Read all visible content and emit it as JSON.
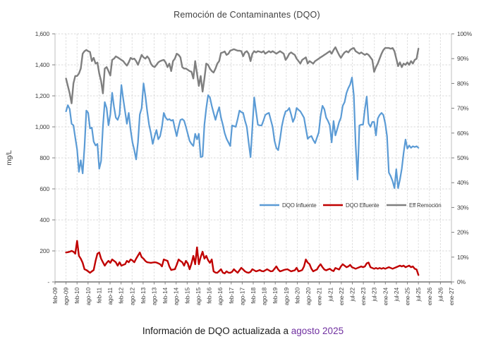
{
  "title": "Remoción de Contaminantes (DQO)",
  "caption": {
    "prefix": "Información de DQO actualizada a ",
    "highlight": "agosto 2025",
    "highlight_color": "#7030A0"
  },
  "y_left_axis": {
    "label": "mg/L",
    "ticks": [
      "1,600",
      "1,400",
      "1,200",
      "1,000",
      "800",
      "600",
      "400",
      "200",
      "-"
    ],
    "min": 0,
    "max": 1600,
    "step": 200
  },
  "y_right_axis": {
    "ticks": [
      "100%",
      "90%",
      "80%",
      "70%",
      "60%",
      "50%",
      "40%",
      "30%",
      "20%",
      "10%",
      "0%"
    ],
    "min": 0,
    "max": 100,
    "step": 10
  },
  "x_axis": {
    "ticks": [
      "feb-09",
      "ago-09",
      "feb-10",
      "ago-10",
      "feb-11",
      "ago-11",
      "feb-12",
      "ago-12",
      "feb-13",
      "ago-13",
      "feb-14",
      "ago-14",
      "feb-15",
      "ago-15",
      "feb-16",
      "ago-16",
      "feb-17",
      "ago-17",
      "feb-18",
      "ago-18",
      "feb-19",
      "ago-19",
      "feb-20",
      "ago-20",
      "ene-21",
      "jul-21",
      "ene-22",
      "jul-22",
      "ene-23",
      "jul-23",
      "ene-24",
      "jul-24",
      "ene-25",
      "jul-25",
      "ene-26",
      "jul-26",
      "ene-27"
    ]
  },
  "legend": [
    {
      "label": "DQO Influente",
      "color": "#5B9BD5"
    },
    {
      "label": "DQO Efluente",
      "color": "#C00000"
    },
    {
      "label": "Eff Remoción",
      "color": "#7F7F7F"
    }
  ],
  "chart_data": {
    "type": "line",
    "title": "Remoción de Contaminantes (DQO)",
    "x_unit": "monthly",
    "data_start": "ago-09",
    "data_end": "jul-25",
    "grid": true,
    "legend_position": "inside-center-right",
    "ylim_left": [
      0,
      1600
    ],
    "ylim_right_percent": [
      0,
      100
    ],
    "series": [
      {
        "name": "DQO Influente",
        "axis": "left",
        "units": "mg/L",
        "color": "#5B9BD5",
        "width": 2.2,
        "values": [
          1100,
          1140,
          1115,
          1020,
          1010,
          930,
          855,
          710,
          785,
          700,
          870,
          1105,
          1090,
          990,
          995,
          905,
          880,
          890,
          730,
          780,
          1000,
          1160,
          1120,
          1010,
          1080,
          1220,
          1130,
          1060,
          1045,
          1080,
          1270,
          1180,
          1100,
          1020,
          1090,
          980,
          900,
          850,
          790,
          900,
          1080,
          1120,
          1280,
          1200,
          1100,
          1015,
          960,
          890,
          940,
          980,
          920,
          940,
          1000,
          1090,
          1060,
          1045,
          1050,
          1040,
          1045,
          990,
          940,
          1000,
          1045,
          1050,
          1040,
          1000,
          955,
          910,
          890,
          877,
          955,
          920,
          955,
          805,
          810,
          1015,
          1120,
          1204,
          1190,
          1136,
          1090,
          1045,
          1090,
          1127,
          1060,
          1014,
          960,
          923,
          900,
          877,
          1009,
          1005,
          1000,
          1050,
          1105,
          1095,
          1090,
          1040,
          1000,
          900,
          805,
          1000,
          1190,
          1100,
          1014,
          1010,
          1009,
          1040,
          1077,
          1085,
          1090,
          1045,
          1000,
          910,
          864,
          850,
          920,
          1005,
          1060,
          1100,
          1105,
          1122,
          1080,
          1032,
          1060,
          1122,
          1110,
          1100,
          1080,
          1059,
          990,
          923,
          935,
          941,
          915,
          895,
          930,
          964,
          1070,
          1136,
          1114,
          1060,
          1038,
          1009,
          900,
          1038,
          945,
          986,
          1030,
          1059,
          1136,
          1159,
          1218,
          1250,
          1273,
          1318,
          1204,
          886,
          660,
          1009,
          1014,
          1014,
          1114,
          1195,
          1023,
          1000,
          1032,
          1032,
          945,
          1054,
          1077,
          1090,
          1077,
          1023,
          940,
          705,
          682,
          650,
          605,
          727,
          605,
          660,
          730,
          832,
          918,
          860,
          880,
          865,
          875,
          870,
          875,
          865
        ]
      },
      {
        "name": "DQO Efluente",
        "axis": "left",
        "units": "mg/L",
        "color": "#C00000",
        "width": 2.4,
        "values": [
          190,
          192,
          195,
          200,
          195,
          182,
          265,
          168,
          150,
          123,
          82,
          77,
          68,
          59,
          68,
          77,
          136,
          182,
          190,
          150,
          127,
          105,
          123,
          136,
          123,
          145,
          136,
          127,
          105,
          127,
          105,
          110,
          114,
          136,
          127,
          145,
          138,
          127,
          150,
          170,
          190,
          160,
          150,
          135,
          127,
          125,
          123,
          125,
          127,
          125,
          120,
          114,
          100,
          145,
          140,
          136,
          100,
          77,
          80,
          82,
          110,
          145,
          135,
          127,
          105,
          136,
          120,
          82,
          120,
          168,
          114,
          223,
          114,
          160,
          195,
          150,
          168,
          140,
          123,
          145,
          68,
          60,
          59,
          70,
          82,
          60,
          55,
          68,
          60,
          59,
          65,
          82,
          70,
          59,
          75,
          91,
          80,
          68,
          62,
          59,
          65,
          82,
          75,
          68,
          72,
          77,
          70,
          68,
          75,
          82,
          75,
          68,
          70,
          85,
          100,
          80,
          68,
          72,
          77,
          80,
          82,
          75,
          68,
          72,
          75,
          91,
          68,
          72,
          77,
          100,
          145,
          125,
          114,
          85,
          68,
          75,
          80,
          100,
          114,
          95,
          80,
          75,
          80,
          85,
          75,
          70,
          90,
          85,
          80,
          100,
          114,
          105,
          95,
          100,
          110,
          95,
          90,
          85,
          90,
          95,
          100,
          95,
          100,
          120,
          125,
          95,
          90,
          85,
          90,
          85,
          90,
          85,
          90,
          85,
          90,
          95,
          90,
          85,
          90,
          95,
          100,
          105,
          100,
          105,
          95,
          100,
          105,
          95,
          100,
          85,
          80,
          45
        ]
      },
      {
        "name": "Eff Remoción",
        "axis": "right",
        "units": "%",
        "color": "#7F7F7F",
        "width": 2.4,
        "values": [
          82,
          79,
          76,
          72,
          80,
          83,
          83,
          84,
          86,
          92,
          93,
          93.5,
          93,
          92.7,
          89,
          90.3,
          88,
          88.4,
          84,
          81,
          76,
          86,
          86.6,
          85,
          83.2,
          89.5,
          90,
          90.9,
          90.5,
          90,
          89.5,
          89,
          88,
          87.2,
          88.5,
          90.3,
          89.8,
          90,
          89,
          87.5,
          89.5,
          91.5,
          90.5,
          90,
          90.9,
          90,
          88,
          87,
          86.6,
          87.5,
          88.5,
          89,
          89.3,
          89.5,
          88.5,
          86.6,
          88,
          85,
          89,
          90,
          92,
          91.5,
          90.5,
          86.6,
          86,
          86,
          85.5,
          85,
          84.7,
          82,
          89,
          84,
          79,
          83,
          76.7,
          82,
          88,
          87.5,
          86,
          85,
          84.4,
          86,
          88,
          89,
          92.3,
          92.5,
          92.9,
          91.5,
          92,
          93.2,
          93.5,
          93.8,
          93.5,
          93.2,
          93.2,
          93,
          91,
          92.5,
          93,
          92,
          89,
          92,
          93,
          92.5,
          93,
          92.8,
          92.5,
          93,
          92,
          92.5,
          93,
          92.5,
          93,
          92.5,
          92,
          92.5,
          93,
          92.5,
          92,
          89.5,
          90.5,
          92,
          92.5,
          92,
          91.5,
          90,
          89,
          88,
          89.5,
          90,
          90.5,
          88,
          89,
          88.5,
          88,
          89,
          89.5,
          90,
          90.5,
          91,
          91.5,
          92,
          92.5,
          93,
          92,
          93.5,
          94.6,
          93,
          91.5,
          90.3,
          91.5,
          92.5,
          93,
          92.5,
          93.5,
          94,
          94.3,
          93,
          92.5,
          92,
          92.5,
          92,
          91.5,
          92,
          91.5,
          90.5,
          89.5,
          84.7,
          86.6,
          88,
          90,
          92,
          93.5,
          94.3,
          94.3,
          94.3,
          94,
          94.3,
          93,
          90,
          87,
          88.5,
          86.6,
          88,
          87.5,
          88.5,
          87.5,
          89,
          88,
          89.5,
          90,
          94
        ]
      }
    ]
  }
}
